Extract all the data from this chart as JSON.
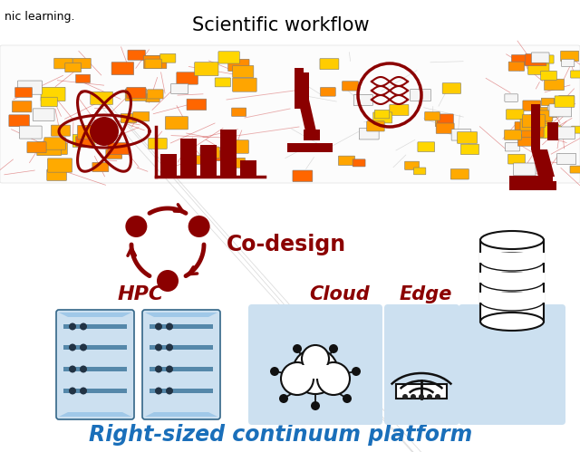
{
  "title": "Scientific workflow",
  "subtitle": "Right-sized continuum platform",
  "codesign_label": "Co-design",
  "hpc_label": "HPC",
  "cloud_label": "Cloud",
  "edge_label": "Edge",
  "bg_color": "#ffffff",
  "dark_red": "#8B0000",
  "blue_text": "#1a6fba",
  "fig_width": 6.4,
  "fig_height": 4.99,
  "top_label": "nic learning."
}
